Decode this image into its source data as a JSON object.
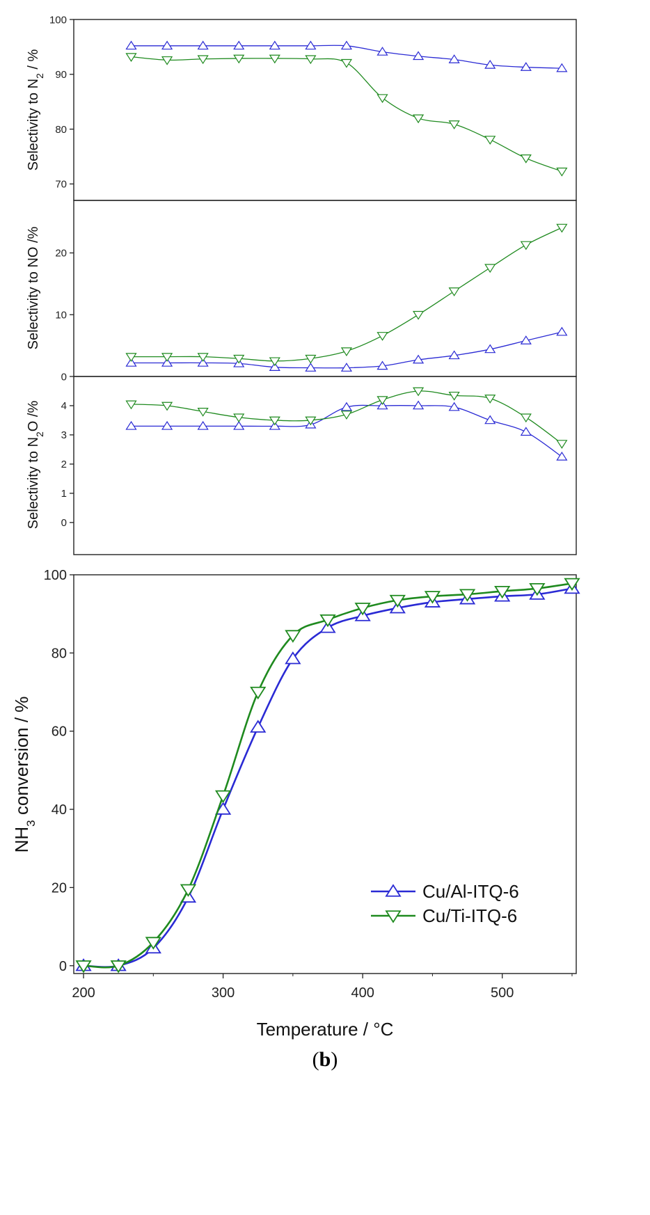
{
  "figure": {
    "caption_open": "(",
    "caption_letter": "b",
    "caption_close": ")"
  },
  "colors": {
    "al": "#2a2ad4",
    "ti": "#1f8a1f",
    "axis": "#222222"
  },
  "legend": {
    "position": "lower-right",
    "entries": [
      "Cu/Al-ITQ-6",
      "Cu/Ti-ITQ-6"
    ]
  },
  "chart_data": [
    {
      "id": "n2",
      "type": "line",
      "ylabel_pre": "Selectivity to N",
      "ylabel_sub": "2",
      "ylabel_post": " / %",
      "ylim": [
        67,
        100
      ],
      "yticks": [
        70,
        80,
        90,
        100
      ],
      "xlim": [
        200,
        550
      ],
      "x": [
        240,
        265,
        290,
        315,
        340,
        365,
        390,
        415,
        440,
        465,
        490,
        515,
        540
      ],
      "series": [
        {
          "name": "Cu/Al-ITQ-6",
          "marker": "triangle-up",
          "values": [
            95.2,
            95.2,
            95.2,
            95.2,
            95.2,
            95.2,
            95.2,
            94.1,
            93.3,
            92.7,
            91.7,
            91.3,
            91.1
          ]
        },
        {
          "name": "Cu/Ti-ITQ-6",
          "marker": "triangle-down",
          "values": [
            93.2,
            92.6,
            92.8,
            92.9,
            92.9,
            92.8,
            92.1,
            85.7,
            82.0,
            80.9,
            78.1,
            74.7,
            72.3
          ]
        }
      ]
    },
    {
      "id": "no",
      "type": "line",
      "ylabel_pre": "Selectivity to NO /%",
      "ylabel_sub": "",
      "ylabel_post": "",
      "ylim": [
        0,
        28.5
      ],
      "yticks": [
        0,
        10,
        20
      ],
      "xlim": [
        200,
        550
      ],
      "x": [
        240,
        265,
        290,
        315,
        340,
        365,
        390,
        415,
        440,
        465,
        490,
        515,
        540
      ],
      "series": [
        {
          "name": "Cu/Al-ITQ-6",
          "marker": "triangle-up",
          "values": [
            2.2,
            2.2,
            2.2,
            2.1,
            1.5,
            1.4,
            1.4,
            1.7,
            2.7,
            3.4,
            4.4,
            5.8,
            7.2
          ]
        },
        {
          "name": "Cu/Ti-ITQ-6",
          "marker": "triangle-down",
          "values": [
            3.2,
            3.2,
            3.2,
            2.9,
            2.5,
            2.9,
            4.1,
            6.6,
            10.0,
            13.8,
            17.6,
            21.3,
            24.1
          ]
        }
      ]
    },
    {
      "id": "n2o",
      "type": "line",
      "ylabel_pre": "Selectivity to N",
      "ylabel_sub": "2",
      "ylabel_post": "O /%",
      "ylim": [
        -1.1,
        5.0
      ],
      "yticks": [
        0,
        1,
        2,
        3,
        4
      ],
      "xlim": [
        200,
        550
      ],
      "x": [
        240,
        265,
        290,
        315,
        340,
        365,
        390,
        415,
        440,
        465,
        490,
        515,
        540
      ],
      "series": [
        {
          "name": "Cu/Al-ITQ-6",
          "marker": "triangle-up",
          "values": [
            3.3,
            3.3,
            3.3,
            3.3,
            3.3,
            3.35,
            3.95,
            4.0,
            4.0,
            3.95,
            3.5,
            3.1,
            2.25
          ]
        },
        {
          "name": "Cu/Ti-ITQ-6",
          "marker": "triangle-down",
          "values": [
            4.05,
            4.0,
            3.8,
            3.6,
            3.5,
            3.5,
            3.7,
            4.2,
            4.5,
            4.35,
            4.25,
            3.6,
            2.7
          ]
        }
      ]
    },
    {
      "id": "nh3",
      "type": "line",
      "ylabel_pre": "NH",
      "ylabel_sub": "3",
      "ylabel_post": " conversion / %",
      "xlabel": "Temperature / °C",
      "ylim": [
        -2,
        100
      ],
      "yticks": [
        0,
        20,
        40,
        60,
        80,
        100
      ],
      "xlim": [
        193,
        553
      ],
      "xticks": [
        200,
        300,
        400,
        500
      ],
      "x": [
        200,
        225,
        250,
        275,
        300,
        325,
        350,
        375,
        400,
        425,
        450,
        475,
        500,
        525,
        550
      ],
      "series": [
        {
          "name": "Cu/Al-ITQ-6",
          "marker": "triangle-up",
          "values": [
            0,
            0,
            4.5,
            17.5,
            40.0,
            61.0,
            78.5,
            86.5,
            89.5,
            91.5,
            93.0,
            93.8,
            94.5,
            95.0,
            96.5
          ]
        },
        {
          "name": "Cu/Ti-ITQ-6",
          "marker": "triangle-down",
          "values": [
            0,
            0,
            6.0,
            19.5,
            43.5,
            70.0,
            84.5,
            88.5,
            91.5,
            93.5,
            94.5,
            95.0,
            95.8,
            96.5,
            97.8
          ]
        }
      ]
    }
  ]
}
